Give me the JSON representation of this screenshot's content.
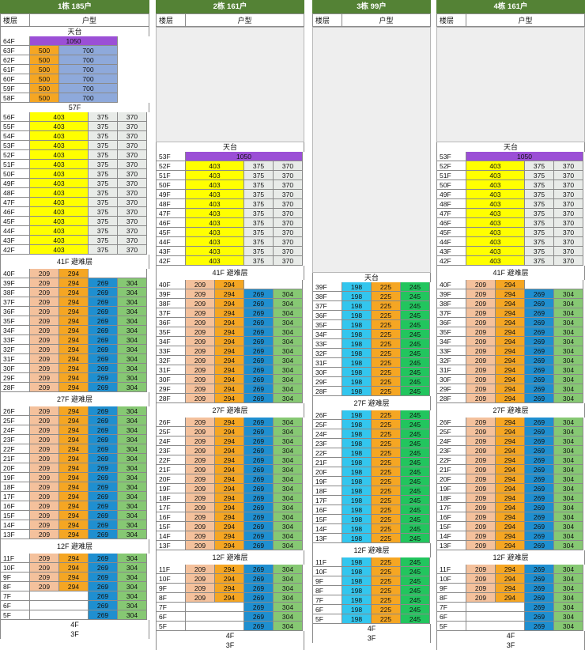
{
  "labels": {
    "floor_col": "楼层",
    "type_col": "户型"
  },
  "colors": {
    "header_green": "#548235",
    "yellow": "#ffff00",
    "orange": "#f5a623",
    "peach": "#f4c19c",
    "purple": "#9b4fd6",
    "slate_blue": "#8ea9db",
    "light_grey": "#e8ebe8",
    "blue": "#1f8fd0",
    "green": "#86c873",
    "light_blue": "#33c6ee",
    "bright_green": "#22c55e"
  },
  "buildings": [
    {
      "title": "1栋 185户",
      "blank_before": false,
      "sections": [
        {
          "kind": "band",
          "label": "天台",
          "h": 12
        },
        {
          "kind": "rows",
          "floors": [
            "64F"
          ],
          "cells": [
            {
              "v": "1050",
              "c": "purple",
              "span": 3
            }
          ]
        },
        {
          "kind": "rows",
          "floors": [
            "63F",
            "62F",
            "61F",
            "60F",
            "59F",
            "58F"
          ],
          "cells": [
            {
              "v": "500",
              "c": "orange",
              "span": 1
            },
            {
              "v": "700",
              "c": "slate_blue",
              "span": 2
            }
          ]
        },
        {
          "kind": "band",
          "label": "57F",
          "h": 12
        },
        {
          "kind": "rows",
          "floors": [
            "56F",
            "55F",
            "54F",
            "53F",
            "52F",
            "51F",
            "50F",
            "49F",
            "48F",
            "47F",
            "46F",
            "45F",
            "44F",
            "43F",
            "42F"
          ],
          "cells": [
            {
              "v": "403",
              "c": "yellow",
              "span": 2
            },
            {
              "v": "375",
              "c": "light_grey",
              "span": 1
            },
            {
              "v": "370",
              "c": "light_grey",
              "span": 1
            }
          ]
        },
        {
          "kind": "band",
          "label": "41F 避难层",
          "h": 18
        },
        {
          "kind": "rows",
          "floors": [
            "40F"
          ],
          "cells": [
            {
              "v": "209",
              "c": "peach",
              "span": 1
            },
            {
              "v": "294",
              "c": "orange",
              "span": 1
            },
            {
              "v": "",
              "c": "empty",
              "span": 2
            }
          ]
        },
        {
          "kind": "rows",
          "floors": [
            "39F",
            "38F",
            "37F",
            "36F",
            "35F",
            "34F",
            "33F",
            "32F",
            "31F",
            "30F",
            "29F",
            "28F"
          ],
          "cells": [
            {
              "v": "209",
              "c": "peach",
              "span": 1
            },
            {
              "v": "294",
              "c": "orange",
              "span": 1
            },
            {
              "v": "269",
              "c": "blue",
              "span": 1
            },
            {
              "v": "304",
              "c": "green",
              "span": 1
            }
          ]
        },
        {
          "kind": "band",
          "label": "27F 避难层",
          "h": 18
        },
        {
          "kind": "rows",
          "floors": [
            "26F",
            "25F",
            "24F",
            "23F",
            "22F",
            "21F",
            "20F",
            "19F",
            "18F",
            "17F",
            "16F",
            "15F",
            "14F",
            "13F"
          ],
          "cells": [
            {
              "v": "209",
              "c": "peach",
              "span": 1
            },
            {
              "v": "294",
              "c": "orange",
              "span": 1
            },
            {
              "v": "269",
              "c": "blue",
              "span": 1
            },
            {
              "v": "304",
              "c": "green",
              "span": 1
            }
          ]
        },
        {
          "kind": "band",
          "label": "12F 避难层",
          "h": 18
        },
        {
          "kind": "rows",
          "floors": [
            "11F",
            "10F",
            "9F",
            "8F"
          ],
          "cells": [
            {
              "v": "209",
              "c": "peach",
              "span": 1
            },
            {
              "v": "294",
              "c": "orange",
              "span": 1
            },
            {
              "v": "269",
              "c": "blue",
              "span": 1
            },
            {
              "v": "304",
              "c": "green",
              "span": 1
            }
          ]
        },
        {
          "kind": "rows",
          "floors": [
            "7F",
            "6F",
            "5F"
          ],
          "cells": [
            {
              "v": "",
              "c": "empty",
              "span": 2
            },
            {
              "v": "269",
              "c": "blue",
              "span": 1
            },
            {
              "v": "304",
              "c": "green",
              "span": 1
            }
          ]
        },
        {
          "kind": "band",
          "label": "4F",
          "h": 12
        },
        {
          "kind": "band",
          "label": "3F",
          "h": 12
        }
      ]
    },
    {
      "title": "2栋 161户",
      "blank_before": true,
      "sections": [
        {
          "kind": "band",
          "label": "天台",
          "h": 12
        },
        {
          "kind": "rows",
          "floors": [
            "53F"
          ],
          "cells": [
            {
              "v": "1050",
              "c": "purple",
              "span": 4
            }
          ]
        },
        {
          "kind": "rows",
          "floors": [
            "52F",
            "51F",
            "50F",
            "49F",
            "48F",
            "47F",
            "46F",
            "45F",
            "44F",
            "43F",
            "42F"
          ],
          "cells": [
            {
              "v": "403",
              "c": "yellow",
              "span": 2
            },
            {
              "v": "375",
              "c": "light_grey",
              "span": 1
            },
            {
              "v": "370",
              "c": "light_grey",
              "span": 1
            }
          ]
        },
        {
          "kind": "band",
          "label": "41F 避难层",
          "h": 18
        },
        {
          "kind": "rows",
          "floors": [
            "40F"
          ],
          "cells": [
            {
              "v": "209",
              "c": "peach",
              "span": 1
            },
            {
              "v": "294",
              "c": "orange",
              "span": 1
            },
            {
              "v": "",
              "c": "empty",
              "span": 2
            }
          ]
        },
        {
          "kind": "rows",
          "floors": [
            "39F",
            "38F",
            "37F",
            "36F",
            "35F",
            "34F",
            "33F",
            "32F",
            "31F",
            "30F",
            "29F",
            "28F"
          ],
          "cells": [
            {
              "v": "209",
              "c": "peach",
              "span": 1
            },
            {
              "v": "294",
              "c": "orange",
              "span": 1
            },
            {
              "v": "269",
              "c": "blue",
              "span": 1
            },
            {
              "v": "304",
              "c": "green",
              "span": 1
            }
          ]
        },
        {
          "kind": "band",
          "label": "27F 避难层",
          "h": 18
        },
        {
          "kind": "rows",
          "floors": [
            "26F",
            "25F",
            "24F",
            "23F",
            "22F",
            "21F",
            "20F",
            "19F",
            "18F",
            "17F",
            "16F",
            "15F",
            "14F",
            "13F"
          ],
          "cells": [
            {
              "v": "209",
              "c": "peach",
              "span": 1
            },
            {
              "v": "294",
              "c": "orange",
              "span": 1
            },
            {
              "v": "269",
              "c": "blue",
              "span": 1
            },
            {
              "v": "304",
              "c": "green",
              "span": 1
            }
          ]
        },
        {
          "kind": "band",
          "label": "12F 避难层",
          "h": 18
        },
        {
          "kind": "rows",
          "floors": [
            "11F",
            "10F",
            "9F",
            "8F"
          ],
          "cells": [
            {
              "v": "209",
              "c": "peach",
              "span": 1
            },
            {
              "v": "294",
              "c": "orange",
              "span": 1
            },
            {
              "v": "269",
              "c": "blue",
              "span": 1
            },
            {
              "v": "304",
              "c": "green",
              "span": 1
            }
          ]
        },
        {
          "kind": "rows",
          "floors": [
            "7F",
            "6F",
            "5F"
          ],
          "cells": [
            {
              "v": "",
              "c": "empty",
              "span": 2
            },
            {
              "v": "269",
              "c": "blue",
              "span": 1
            },
            {
              "v": "304",
              "c": "green",
              "span": 1
            }
          ]
        },
        {
          "kind": "band",
          "label": "4F",
          "h": 12
        },
        {
          "kind": "band",
          "label": "3F",
          "h": 12
        }
      ]
    },
    {
      "title": "3栋 99户",
      "blank_before": true,
      "sections": [
        {
          "kind": "band",
          "label": "天台",
          "h": 12
        },
        {
          "kind": "rows",
          "floors": [
            "39F",
            "38F",
            "37F",
            "36F",
            "35F",
            "34F",
            "33F",
            "32F",
            "31F",
            "30F",
            "29F",
            "28F"
          ],
          "cells": [
            {
              "v": "198",
              "c": "light_blue",
              "span": 1
            },
            {
              "v": "225",
              "c": "orange",
              "span": 1
            },
            {
              "v": "245",
              "c": "bright_green",
              "span": 1
            }
          ]
        },
        {
          "kind": "band",
          "label": "27F 避难层",
          "h": 18
        },
        {
          "kind": "rows",
          "floors": [
            "26F",
            "25F",
            "24F",
            "23F",
            "22F",
            "21F",
            "20F",
            "19F",
            "18F",
            "17F",
            "16F",
            "15F",
            "14F",
            "13F"
          ],
          "cells": [
            {
              "v": "198",
              "c": "light_blue",
              "span": 1
            },
            {
              "v": "225",
              "c": "orange",
              "span": 1
            },
            {
              "v": "245",
              "c": "bright_green",
              "span": 1
            }
          ]
        },
        {
          "kind": "band",
          "label": "12F 避难层",
          "h": 18
        },
        {
          "kind": "rows",
          "floors": [
            "11F",
            "10F",
            "9F",
            "8F",
            "7F",
            "6F",
            "5F"
          ],
          "cells": [
            {
              "v": "198",
              "c": "light_blue",
              "span": 1
            },
            {
              "v": "225",
              "c": "orange",
              "span": 1
            },
            {
              "v": "245",
              "c": "bright_green",
              "span": 1
            }
          ]
        },
        {
          "kind": "band",
          "label": "4F",
          "h": 12
        },
        {
          "kind": "band",
          "label": "3F",
          "h": 12
        }
      ]
    },
    {
      "title": "4栋 161户",
      "blank_before": true,
      "sections": [
        {
          "kind": "band",
          "label": "天台",
          "h": 12
        },
        {
          "kind": "rows",
          "floors": [
            "53F"
          ],
          "cells": [
            {
              "v": "1050",
              "c": "purple",
              "span": 4
            }
          ]
        },
        {
          "kind": "rows",
          "floors": [
            "52F",
            "51F",
            "50F",
            "49F",
            "48F",
            "47F",
            "46F",
            "45F",
            "44F",
            "43F",
            "42F"
          ],
          "cells": [
            {
              "v": "403",
              "c": "yellow",
              "span": 2
            },
            {
              "v": "375",
              "c": "light_grey",
              "span": 1
            },
            {
              "v": "370",
              "c": "light_grey",
              "span": 1
            }
          ]
        },
        {
          "kind": "band",
          "label": "41F 避难层",
          "h": 18
        },
        {
          "kind": "rows",
          "floors": [
            "40F"
          ],
          "cells": [
            {
              "v": "209",
              "c": "peach",
              "span": 1
            },
            {
              "v": "294",
              "c": "orange",
              "span": 1
            },
            {
              "v": "",
              "c": "empty",
              "span": 2
            }
          ]
        },
        {
          "kind": "rows",
          "floors": [
            "39F",
            "38F",
            "37F",
            "36F",
            "35F",
            "34F",
            "33F",
            "32F",
            "31F",
            "30F",
            "29F",
            "28F"
          ],
          "cells": [
            {
              "v": "209",
              "c": "peach",
              "span": 1
            },
            {
              "v": "294",
              "c": "orange",
              "span": 1
            },
            {
              "v": "269",
              "c": "blue",
              "span": 1
            },
            {
              "v": "304",
              "c": "green",
              "span": 1
            }
          ]
        },
        {
          "kind": "band",
          "label": "27F 避难层",
          "h": 18
        },
        {
          "kind": "rows",
          "floors": [
            "26F",
            "25F",
            "24F",
            "23F",
            "22F",
            "21F",
            "20F",
            "19F",
            "18F",
            "17F",
            "16F",
            "15F",
            "14F",
            "13F"
          ],
          "cells": [
            {
              "v": "209",
              "c": "peach",
              "span": 1
            },
            {
              "v": "294",
              "c": "orange",
              "span": 1
            },
            {
              "v": "269",
              "c": "blue",
              "span": 1
            },
            {
              "v": "304",
              "c": "green",
              "span": 1
            }
          ]
        },
        {
          "kind": "band",
          "label": "12F 避难层",
          "h": 18
        },
        {
          "kind": "rows",
          "floors": [
            "11F",
            "10F",
            "9F",
            "8F"
          ],
          "cells": [
            {
              "v": "209",
              "c": "peach",
              "span": 1
            },
            {
              "v": "294",
              "c": "orange",
              "span": 1
            },
            {
              "v": "269",
              "c": "blue",
              "span": 1
            },
            {
              "v": "304",
              "c": "green",
              "span": 1
            }
          ]
        },
        {
          "kind": "rows",
          "floors": [
            "7F",
            "6F",
            "5F"
          ],
          "cells": [
            {
              "v": "",
              "c": "empty",
              "span": 2
            },
            {
              "v": "269",
              "c": "blue",
              "span": 1
            },
            {
              "v": "304",
              "c": "green",
              "span": 1
            }
          ]
        },
        {
          "kind": "band",
          "label": "4F",
          "h": 12
        },
        {
          "kind": "band",
          "label": "3F",
          "h": 12
        }
      ]
    }
  ]
}
